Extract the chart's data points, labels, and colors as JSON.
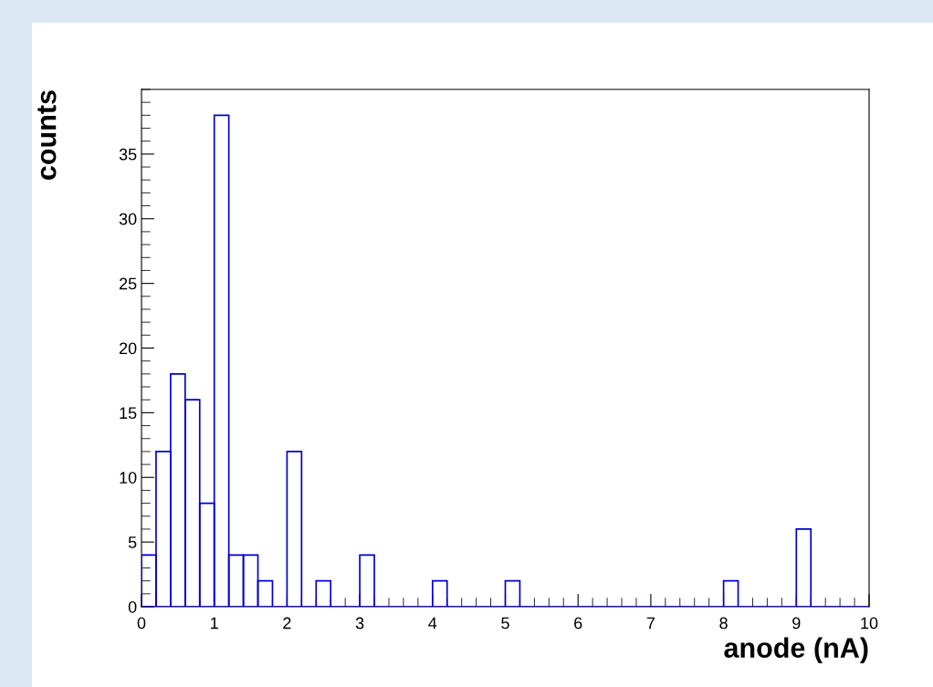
{
  "chart_data": {
    "type": "histogram",
    "xlabel": "anode (nA)",
    "ylabel": "counts",
    "color": "#0000cc",
    "bins": [
      0,
      0.2,
      0.4,
      0.6,
      0.8,
      1.0,
      1.2,
      1.4,
      1.6,
      1.8,
      2.0,
      2.2,
      2.4,
      2.6,
      2.8,
      3.0,
      3.2,
      3.4,
      3.6,
      3.8,
      4.0,
      4.2,
      4.4,
      4.6,
      4.8,
      5.0,
      5.2,
      5.4,
      5.6,
      5.8,
      6.0,
      6.2,
      6.4,
      6.6,
      6.8,
      7.0,
      7.2,
      7.4,
      7.6,
      7.8,
      8.0,
      8.2,
      8.4,
      8.6,
      8.8,
      9.0,
      9.2,
      9.4,
      9.6,
      9.8,
      10.0
    ],
    "values": [
      4,
      12,
      18,
      16,
      8,
      38,
      4,
      4,
      2,
      0,
      12,
      0,
      2,
      0,
      0,
      4,
      0,
      0,
      0,
      0,
      2,
      0,
      0,
      0,
      0,
      2,
      0,
      0,
      0,
      0,
      0,
      0,
      0,
      0,
      0,
      0,
      0,
      0,
      0,
      0,
      2,
      0,
      0,
      0,
      0,
      6,
      0,
      0,
      0,
      0
    ],
    "xlim": [
      0,
      10
    ],
    "ylim": [
      0,
      40
    ],
    "xticks": [
      0,
      1,
      2,
      3,
      4,
      5,
      6,
      7,
      8,
      9,
      10
    ],
    "yticks": [
      0,
      5,
      10,
      15,
      20,
      25,
      30,
      35
    ],
    "grid": false,
    "legend": false
  }
}
